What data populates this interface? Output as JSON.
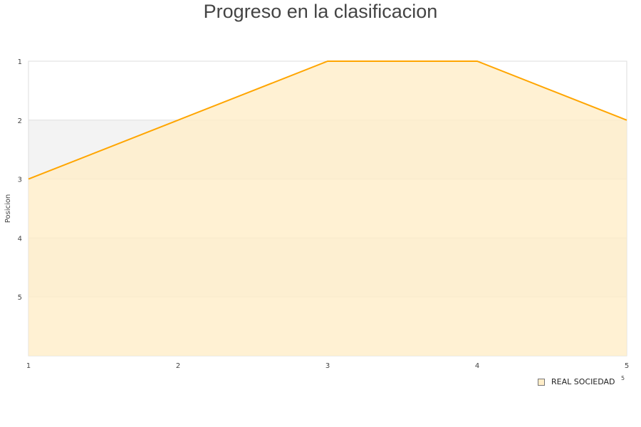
{
  "chart_data": {
    "type": "area",
    "title": "Progreso en la clasificacion",
    "ylabel": "Posicion",
    "xlabel": "",
    "x": [
      1,
      2,
      3,
      4,
      5
    ],
    "series": [
      {
        "name": "REAL SOCIEDAD",
        "values": [
          3,
          2,
          1,
          1,
          2
        ],
        "color": "#ffa500",
        "fill": "#ffedc8"
      }
    ],
    "xlim": [
      1,
      5
    ],
    "ylim": [
      1,
      6
    ],
    "y_inverted": true,
    "yticks": [
      1,
      2,
      3,
      4,
      5
    ],
    "xticks": [
      1,
      2,
      3,
      4,
      5
    ],
    "grid": "alternating bands",
    "legend": "bottom-right",
    "legend_extra": "5"
  }
}
